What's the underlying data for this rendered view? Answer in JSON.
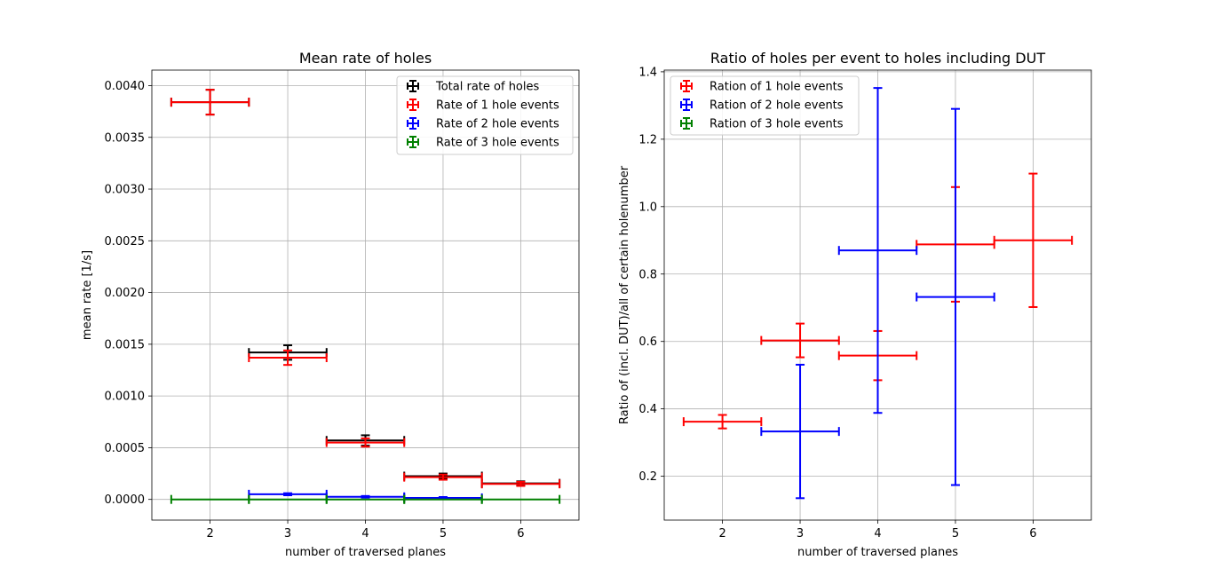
{
  "chart_data": [
    {
      "type": "scatter",
      "title": "Mean rate of holes",
      "xlabel": "number of traversed planes",
      "ylabel": "mean rate [1/s]",
      "xlim": [
        1.25,
        6.75
      ],
      "ylim": [
        -0.0002,
        0.00415
      ],
      "xticks": [
        2,
        3,
        4,
        5,
        6
      ],
      "yticks": [
        0,
        0.0005,
        0.001,
        0.0015,
        0.002,
        0.0025,
        0.003,
        0.0035,
        0.004
      ],
      "ytick_labels": [
        "0.0000",
        "0.0005",
        "0.0010",
        "0.0015",
        "0.0020",
        "0.0025",
        "0.0030",
        "0.0035",
        "0.0040"
      ],
      "grid": true,
      "legend": "top-right",
      "series": [
        {
          "name": "Total rate of holes",
          "color": "#000000",
          "x": [
            2,
            3,
            4,
            5,
            6
          ],
          "xerr": [
            0.5,
            0.5,
            0.5,
            0.5,
            0.5
          ],
          "y": [
            0.00384,
            0.00142,
            0.00057,
            0.000225,
            0.000155
          ],
          "yerr": [
            0.00012,
            7e-05,
            5e-05,
            2.5e-05,
            2e-05
          ]
        },
        {
          "name": "Rate of 1 hole events",
          "color": "#ff0000",
          "x": [
            2,
            3,
            4,
            5,
            6
          ],
          "xerr": [
            0.5,
            0.5,
            0.5,
            0.5,
            0.5
          ],
          "y": [
            0.00384,
            0.00137,
            0.00055,
            0.000215,
            0.00015
          ],
          "yerr": [
            0.00012,
            7e-05,
            4e-05,
            2.5e-05,
            2e-05
          ]
        },
        {
          "name": "Rate of 2 hole events",
          "color": "#0000ff",
          "x": [
            3,
            4,
            5
          ],
          "xerr": [
            0.5,
            0.5,
            0.5
          ],
          "y": [
            5e-05,
            2.5e-05,
            1.5e-05
          ],
          "yerr": [
            1e-05,
            8e-06,
            8e-06
          ]
        },
        {
          "name": "Rate of 3 hole events",
          "color": "#008000",
          "x": [
            2,
            3,
            4,
            5,
            6
          ],
          "xerr": [
            0.5,
            0.5,
            0.5,
            0.5,
            0.5
          ],
          "y": [
            0,
            0,
            0,
            0,
            0
          ],
          "yerr": [
            0,
            0,
            0,
            0,
            0
          ]
        }
      ]
    },
    {
      "type": "scatter",
      "title": "Ratio of holes per event to holes including DUT",
      "xlabel": "number of traversed planes",
      "ylabel": "Ratio of (incl. DUT)/all of  certain holenumber",
      "xlim": [
        1.25,
        6.75
      ],
      "ylim": [
        0.07,
        1.405
      ],
      "xticks": [
        2,
        3,
        4,
        5,
        6
      ],
      "yticks": [
        0.2,
        0.4,
        0.6,
        0.8,
        1.0,
        1.2,
        1.4
      ],
      "ytick_labels": [
        "0.2",
        "0.4",
        "0.6",
        "0.8",
        "1.0",
        "1.2",
        "1.4"
      ],
      "grid": true,
      "legend": "top-left",
      "series": [
        {
          "name": "Ration of 1 hole events",
          "color": "#ff0000",
          "x": [
            2,
            3,
            4,
            5,
            6
          ],
          "xerr": [
            0.5,
            0.5,
            0.5,
            0.5,
            0.5
          ],
          "y": [
            0.362,
            0.603,
            0.558,
            0.888,
            0.9
          ],
          "yerr": [
            0.02,
            0.05,
            0.073,
            0.17,
            0.198
          ]
        },
        {
          "name": "Ration of 2 hole events",
          "color": "#0000ff",
          "x": [
            3,
            4,
            5
          ],
          "xerr": [
            0.5,
            0.5,
            0.5
          ],
          "y": [
            0.333,
            0.87,
            0.732
          ],
          "yerr": [
            0.198,
            0.482,
            0.558
          ]
        },
        {
          "name": "Ration of 3 hole events",
          "color": "#008000",
          "x": [],
          "xerr": [],
          "y": [],
          "yerr": []
        }
      ]
    }
  ]
}
